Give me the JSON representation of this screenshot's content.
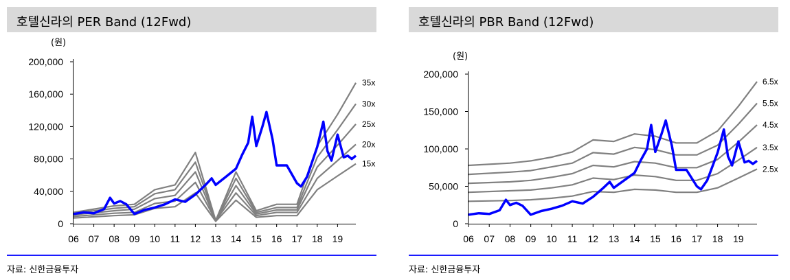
{
  "chart_data": [
    {
      "type": "line",
      "title": "호텔신라의 PER Band (12Fwd)",
      "unit": "(원)",
      "source": "자료: 신한금융투자",
      "categories": [
        "06",
        "07",
        "08",
        "09",
        "10",
        "11",
        "12",
        "13",
        "14",
        "15",
        "16",
        "17",
        "18",
        "19"
      ],
      "ylim": [
        0,
        200000
      ],
      "yticks": [
        0,
        40000,
        80000,
        120000,
        160000,
        200000
      ],
      "ytick_labels": [
        "0",
        "40,000",
        "80,000",
        "120,000",
        "160,000",
        "200,000"
      ],
      "series": [
        {
          "name": "35x",
          "x": [
            2006.0,
            2008.0,
            2009.0,
            2010.0,
            2011.0,
            2012.0,
            2013.0,
            2014.0,
            2015.0,
            2016.0,
            2017.0,
            2018.0,
            2019.0,
            2019.9
          ],
          "values": [
            14000,
            22000,
            24000,
            42000,
            48000,
            88000,
            4000,
            64000,
            16000,
            24000,
            24000,
            96000,
            135000,
            174000
          ]
        },
        {
          "name": "30x",
          "x": [
            2006.0,
            2008.0,
            2009.0,
            2010.0,
            2011.0,
            2012.0,
            2013.0,
            2014.0,
            2015.0,
            2016.0,
            2017.0,
            2018.0,
            2019.0,
            2019.9
          ],
          "values": [
            13000,
            19000,
            21000,
            37000,
            42000,
            76000,
            4000,
            56000,
            14000,
            20000,
            20000,
            82000,
            116000,
            148000
          ]
        },
        {
          "name": "25x",
          "x": [
            2006.0,
            2008.0,
            2009.0,
            2010.0,
            2011.0,
            2012.0,
            2013.0,
            2014.0,
            2015.0,
            2016.0,
            2017.0,
            2018.0,
            2019.0,
            2019.9
          ],
          "values": [
            11000,
            16000,
            18000,
            31000,
            35000,
            64000,
            4000,
            47000,
            12000,
            17000,
            17000,
            70000,
            97000,
            123000
          ]
        },
        {
          "name": "20x",
          "x": [
            2006.0,
            2008.0,
            2009.0,
            2010.0,
            2011.0,
            2012.0,
            2013.0,
            2014.0,
            2015.0,
            2016.0,
            2017.0,
            2018.0,
            2019.0,
            2019.9
          ],
          "values": [
            9000,
            13000,
            14000,
            25000,
            28000,
            51000,
            4000,
            38000,
            10000,
            14000,
            14000,
            56000,
            78000,
            98000
          ]
        },
        {
          "name": "15x",
          "x": [
            2006.0,
            2008.0,
            2009.0,
            2010.0,
            2011.0,
            2012.0,
            2013.0,
            2014.0,
            2015.0,
            2016.0,
            2017.0,
            2018.0,
            2019.0,
            2019.9
          ],
          "values": [
            7000,
            10000,
            11000,
            19000,
            21000,
            38000,
            3000,
            29000,
            8000,
            10000,
            10000,
            42000,
            59000,
            74000
          ]
        },
        {
          "name": "",
          "x": [
            2006.0,
            2006.5,
            2007.0,
            2007.5,
            2007.8,
            2008.0,
            2008.3,
            2008.6,
            2009.0,
            2009.5,
            2010.0,
            2010.5,
            2011.0,
            2011.5,
            2012.0,
            2012.5,
            2012.8,
            2013.0,
            2013.5,
            2014.0,
            2014.3,
            2014.6,
            2014.8,
            2015.0,
            2015.3,
            2015.5,
            2015.8,
            2016.0,
            2016.5,
            2017.0,
            2017.2,
            2017.5,
            2018.0,
            2018.3,
            2018.5,
            2018.7,
            2019.0,
            2019.3,
            2019.5,
            2019.7,
            2019.9
          ],
          "values": [
            12000,
            14000,
            13000,
            18000,
            32000,
            25000,
            28000,
            24000,
            12000,
            17000,
            20000,
            24000,
            30000,
            27000,
            36000,
            48000,
            56000,
            48000,
            58000,
            68000,
            85000,
            100000,
            132000,
            96000,
            120000,
            138000,
            104000,
            72000,
            72000,
            50000,
            46000,
            58000,
            95000,
            126000,
            90000,
            78000,
            110000,
            82000,
            84000,
            80000,
            84000
          ]
        }
      ],
      "colors": {
        "bands": "#808080",
        "price": "#0000ff"
      }
    },
    {
      "type": "line",
      "title": "호텔신라의 PBR Band (12Fwd)",
      "unit": "(원)",
      "source": "자료: 신한금융투자",
      "categories": [
        "06",
        "07",
        "08",
        "09",
        "10",
        "11",
        "12",
        "13",
        "14",
        "15",
        "16",
        "17",
        "18",
        "19"
      ],
      "ylim": [
        0,
        200000
      ],
      "yticks": [
        0,
        50000,
        100000,
        150000,
        200000
      ],
      "ytick_labels": [
        "0",
        "50,000",
        "100,000",
        "150,000",
        "200,000"
      ],
      "series": [
        {
          "name": "6.5x",
          "x": [
            2006.0,
            2008.0,
            2009.0,
            2010.0,
            2011.0,
            2012.0,
            2013.0,
            2014.0,
            2015.0,
            2016.0,
            2017.0,
            2018.0,
            2019.0,
            2019.9
          ],
          "values": [
            78000,
            81000,
            84000,
            89000,
            96000,
            112000,
            110000,
            120000,
            117000,
            108000,
            108000,
            124000,
            157000,
            190000
          ]
        },
        {
          "name": "5.5x",
          "x": [
            2006.0,
            2008.0,
            2009.0,
            2010.0,
            2011.0,
            2012.0,
            2013.0,
            2014.0,
            2015.0,
            2016.0,
            2017.0,
            2018.0,
            2019.0,
            2019.9
          ],
          "values": [
            66000,
            69000,
            71000,
            76000,
            81000,
            95000,
            93000,
            102000,
            99000,
            92000,
            92000,
            105000,
            133000,
            161000
          ]
        },
        {
          "name": "4.5x",
          "x": [
            2006.0,
            2008.0,
            2009.0,
            2010.0,
            2011.0,
            2012.0,
            2013.0,
            2014.0,
            2015.0,
            2016.0,
            2017.0,
            2018.0,
            2019.0,
            2019.9
          ],
          "values": [
            54000,
            56000,
            58000,
            62000,
            67000,
            78000,
            76000,
            83000,
            81000,
            75000,
            75000,
            86000,
            109000,
            132000
          ]
        },
        {
          "name": "3.5x",
          "x": [
            2006.0,
            2008.0,
            2009.0,
            2010.0,
            2011.0,
            2012.0,
            2013.0,
            2014.0,
            2015.0,
            2016.0,
            2017.0,
            2018.0,
            2019.0,
            2019.9
          ],
          "values": [
            42000,
            44000,
            45000,
            48000,
            52000,
            61000,
            59000,
            65000,
            63000,
            58000,
            58000,
            67000,
            85000,
            102000
          ]
        },
        {
          "name": "2.5x",
          "x": [
            2006.0,
            2008.0,
            2009.0,
            2010.0,
            2011.0,
            2012.0,
            2013.0,
            2014.0,
            2015.0,
            2016.0,
            2017.0,
            2018.0,
            2019.0,
            2019.9
          ],
          "values": [
            30000,
            31000,
            32000,
            34000,
            37000,
            43000,
            42000,
            46000,
            45000,
            42000,
            42000,
            48000,
            61000,
            73000
          ]
        },
        {
          "name": "",
          "x": [
            2006.0,
            2006.5,
            2007.0,
            2007.5,
            2007.8,
            2008.0,
            2008.3,
            2008.6,
            2009.0,
            2009.5,
            2010.0,
            2010.5,
            2011.0,
            2011.5,
            2012.0,
            2012.5,
            2012.8,
            2013.0,
            2013.5,
            2014.0,
            2014.3,
            2014.6,
            2014.8,
            2015.0,
            2015.3,
            2015.5,
            2015.8,
            2016.0,
            2016.5,
            2017.0,
            2017.2,
            2017.5,
            2018.0,
            2018.3,
            2018.5,
            2018.7,
            2019.0,
            2019.3,
            2019.5,
            2019.7,
            2019.9
          ],
          "values": [
            12000,
            14000,
            13000,
            18000,
            32000,
            25000,
            28000,
            24000,
            12000,
            17000,
            20000,
            24000,
            30000,
            27000,
            36000,
            48000,
            56000,
            48000,
            58000,
            68000,
            85000,
            100000,
            132000,
            96000,
            120000,
            138000,
            104000,
            72000,
            72000,
            50000,
            46000,
            58000,
            95000,
            126000,
            90000,
            78000,
            110000,
            82000,
            84000,
            80000,
            84000
          ]
        }
      ],
      "colors": {
        "bands": "#808080",
        "price": "#0000ff"
      }
    }
  ]
}
